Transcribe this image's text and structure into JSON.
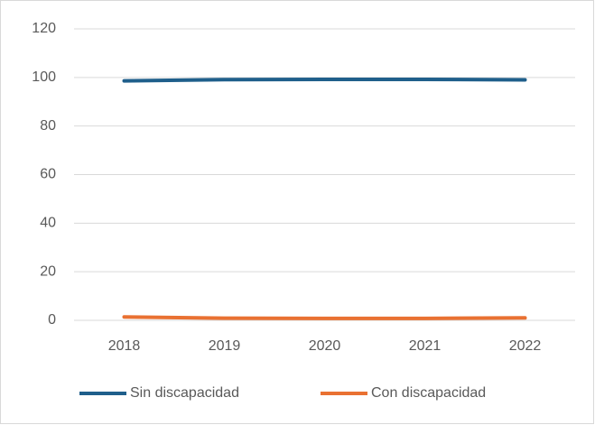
{
  "chart_data": {
    "type": "line",
    "categories": [
      "2018",
      "2019",
      "2020",
      "2021",
      "2022"
    ],
    "series": [
      {
        "name": "Sin discapacidad",
        "color": "#1f5f8b",
        "values": [
          98.6,
          99.1,
          99.2,
          99.2,
          99.0
        ]
      },
      {
        "name": "Con discapacidad",
        "color": "#e97132",
        "values": [
          1.4,
          0.9,
          0.8,
          0.8,
          1.0
        ]
      }
    ],
    "ylim": [
      0,
      120
    ],
    "yticks": [
      0,
      20,
      40,
      60,
      80,
      100,
      120
    ],
    "grid": true,
    "legend": "bottom"
  }
}
